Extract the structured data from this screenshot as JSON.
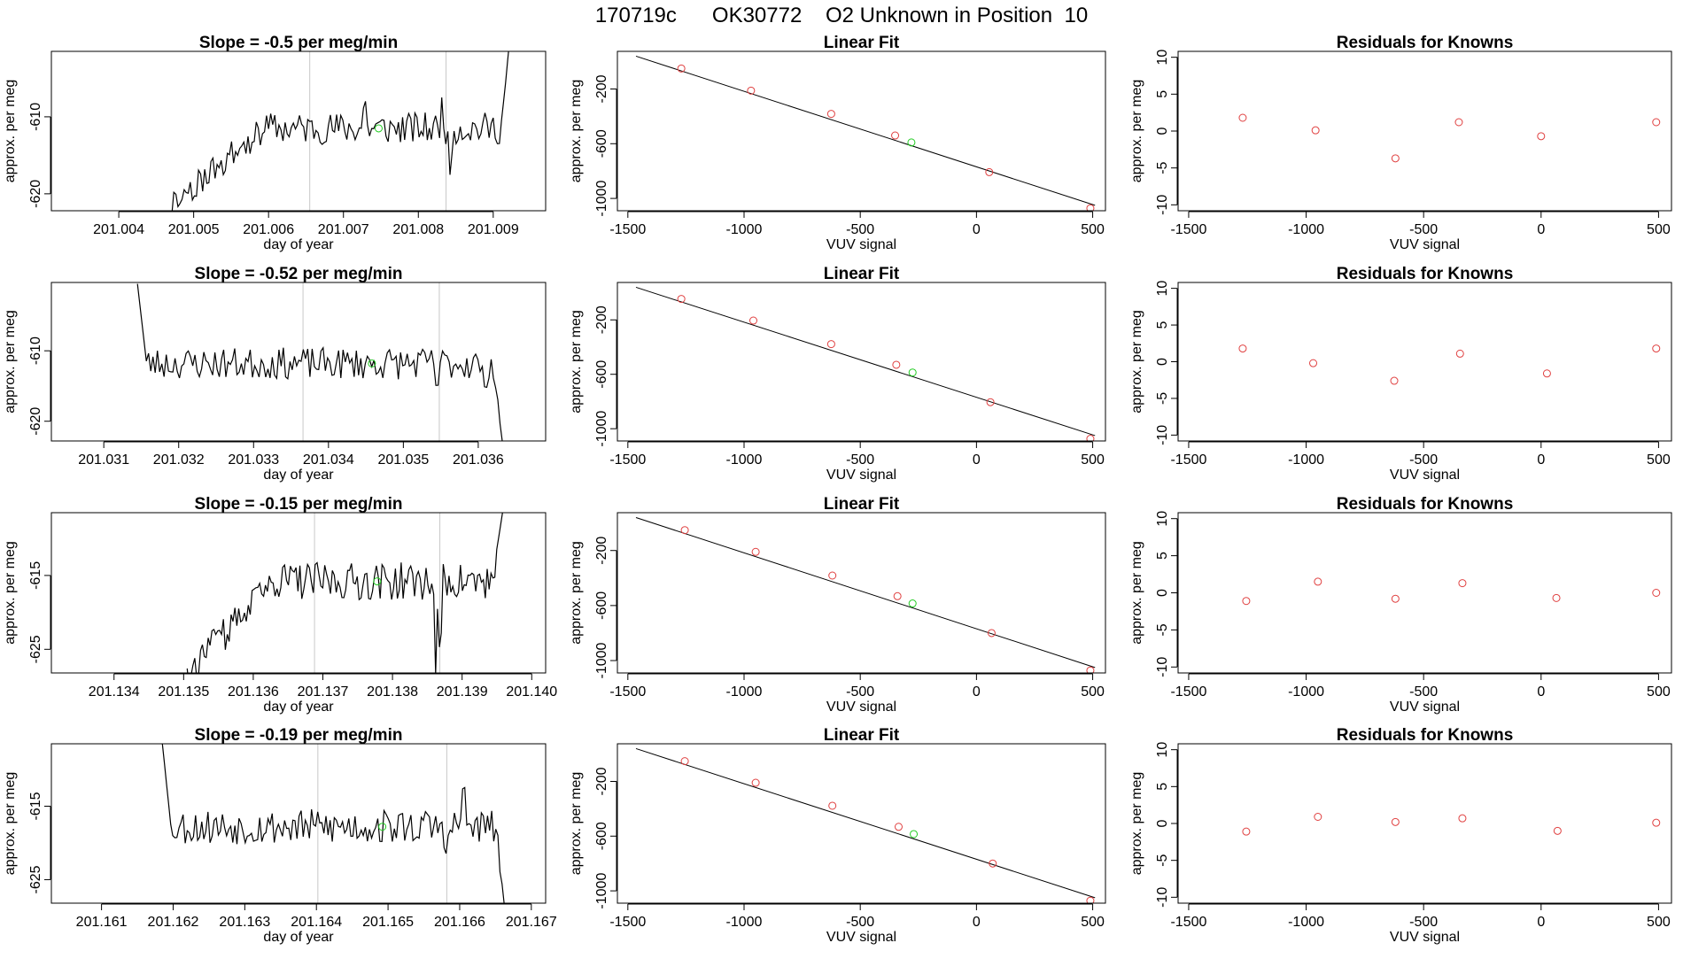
{
  "figure_title": "170719c      OK30772    O2 Unknown in Position  10",
  "colors": {
    "known": "#e04040",
    "unknown": "#22cc22",
    "line": "#000000",
    "marker": "#c8c8c8"
  },
  "chart_data": [
    {
      "type": "line",
      "title": "Slope =  -0.5  per meg/min",
      "xlabel": "day of year",
      "ylabel": "approx. per meg",
      "xlim": [
        201.0031,
        201.0097
      ],
      "ylim": [
        -622.2,
        -601.5
      ],
      "xticks": [
        201.004,
        201.005,
        201.006,
        201.007,
        201.008,
        201.009
      ],
      "xtick_labels": [
        "201.004",
        "201.005",
        "201.006",
        "201.007",
        "201.008",
        "201.009"
      ],
      "yticks": [
        -620,
        -610
      ],
      "ytick_labels": [
        "-620",
        "-610"
      ],
      "vlines": [
        201.00655,
        201.00837
      ],
      "unknown_point": [
        201.00747,
        -611.5
      ],
      "x_start": 201.00468,
      "x_end": 201.00922,
      "base_level": -611.5,
      "ramp_start_level": -621.5,
      "jitter": 1.3,
      "spikes": [
        [
          201.00728,
          4.5
        ],
        [
          201.00832,
          3.5
        ],
        [
          201.00842,
          -6.5
        ]
      ],
      "tail_end": [
        201.00922,
        -600
      ],
      "seed": 11
    },
    {
      "type": "scatter",
      "title": "Linear Fit",
      "xlabel": "VUV signal",
      "ylabel": "approx. per meg",
      "xlim": [
        -1545,
        555
      ],
      "ylim": [
        -1090,
        75
      ],
      "xticks": [
        -1500,
        -1000,
        -500,
        0,
        500
      ],
      "xtick_labels": [
        "-1500",
        "-1000",
        "-500",
        "0",
        "500"
      ],
      "yticks": [
        -1000,
        -600,
        -200
      ],
      "ytick_labels": [
        "-1000",
        "-600",
        "-200"
      ],
      "known_x": [
        -1270,
        -970,
        -625,
        -350,
        55,
        490
      ],
      "known_y": [
        -50,
        -212,
        -382,
        -540,
        -808,
        -1072
      ],
      "unknown_x": -280,
      "unknown_y": -591,
      "fit_slope": -0.552,
      "fit_intercept": -769
    },
    {
      "type": "scatter",
      "title": "Residuals for Knowns",
      "xlabel": "VUV signal",
      "ylabel": "approx. per meg",
      "xlim": [
        -1545,
        555
      ],
      "ylim": [
        -10.8,
        10.8
      ],
      "xticks": [
        -1500,
        -1000,
        -500,
        0,
        500
      ],
      "xtick_labels": [
        "-1500",
        "-1000",
        "-500",
        "0",
        "500"
      ],
      "yticks": [
        -10,
        -5,
        0,
        5,
        10
      ],
      "ytick_labels": [
        "-10",
        "-5",
        "0",
        "5",
        "10"
      ],
      "x": [
        -1270,
        -960,
        -620,
        -350,
        0,
        490
      ],
      "y": [
        1.8,
        0.1,
        -3.7,
        1.2,
        -0.7,
        1.2
      ]
    },
    {
      "type": "line",
      "title": "Slope =  -0.52  per meg/min",
      "xlabel": "day of year",
      "ylabel": "approx. per meg",
      "xlim": [
        201.0303,
        201.0369
      ],
      "ylim": [
        -622.8,
        -600.3
      ],
      "xticks": [
        201.031,
        201.032,
        201.033,
        201.034,
        201.035,
        201.036
      ],
      "xtick_labels": [
        "201.031",
        "201.032",
        "201.033",
        "201.034",
        "201.035",
        "201.036"
      ],
      "yticks": [
        -620,
        -610
      ],
      "ytick_labels": [
        "-620",
        "-610"
      ],
      "vlines": [
        201.03366,
        201.03548
      ],
      "unknown_point": [
        201.03458,
        -611.8
      ],
      "x_start": 201.03145,
      "x_end": 201.03632,
      "base_level": -611.8,
      "ramp_start_level": null,
      "head_start": [
        201.03145,
        -600.5
      ],
      "jitter": 1.4,
      "spikes": [
        [
          201.03545,
          -4.0
        ],
        [
          201.03608,
          -5.5
        ]
      ],
      "tail_end": [
        201.03632,
        -622.8
      ],
      "seed": 23
    },
    {
      "type": "scatter",
      "title": "Linear Fit",
      "xlabel": "VUV signal",
      "ylabel": "approx. per meg",
      "xlim": [
        -1545,
        555
      ],
      "ylim": [
        -1090,
        75
      ],
      "xticks": [
        -1500,
        -1000,
        -500,
        0,
        500
      ],
      "xtick_labels": [
        "-1500",
        "-1000",
        "-500",
        "0",
        "500"
      ],
      "yticks": [
        -1000,
        -600,
        -200
      ],
      "ytick_labels": [
        "-1000",
        "-600",
        "-200"
      ],
      "known_x": [
        -1270,
        -960,
        -625,
        -345,
        60,
        490
      ],
      "known_y": [
        -46,
        -205,
        -378,
        -530,
        -805,
        -1074
      ],
      "unknown_x": -275,
      "unknown_y": -587,
      "fit_slope": -0.552,
      "fit_intercept": -769
    },
    {
      "type": "scatter",
      "title": "Residuals for Knowns",
      "xlabel": "VUV signal",
      "ylabel": "approx. per meg",
      "xlim": [
        -1545,
        555
      ],
      "ylim": [
        -10.8,
        10.8
      ],
      "xticks": [
        -1500,
        -1000,
        -500,
        0,
        500
      ],
      "xtick_labels": [
        "-1500",
        "-1000",
        "-500",
        "0",
        "500"
      ],
      "yticks": [
        -10,
        -5,
        0,
        5,
        10
      ],
      "ytick_labels": [
        "-10",
        "-5",
        "0",
        "5",
        "10"
      ],
      "x": [
        -1270,
        -970,
        -625,
        -345,
        25,
        490
      ],
      "y": [
        1.8,
        -0.2,
        -2.6,
        1.1,
        -1.6,
        1.8
      ]
    },
    {
      "type": "line",
      "title": "Slope =  -0.15  per meg/min",
      "xlabel": "day of year",
      "ylabel": "approx. per meg",
      "xlim": [
        201.1331,
        201.1402
      ],
      "ylim": [
        -628.2,
        -606.5
      ],
      "xticks": [
        201.134,
        201.135,
        201.136,
        201.137,
        201.138,
        201.139,
        201.14
      ],
      "xtick_labels": [
        "201.134",
        "201.135",
        "201.136",
        "201.137",
        "201.138",
        "201.139",
        "201.140"
      ],
      "yticks": [
        -625,
        -615
      ],
      "ytick_labels": [
        "-625",
        "-615"
      ],
      "vlines": [
        201.13688,
        201.13868
      ],
      "unknown_point": [
        201.13778,
        -615.8
      ],
      "x_start": 201.13505,
      "x_end": 201.13958,
      "base_level": -615.8,
      "ramp_start_level": -628.2,
      "jitter": 1.6,
      "spikes": [
        [
          201.13862,
          -11.0
        ],
        [
          201.13868,
          -12.0
        ]
      ],
      "tail_end": [
        201.13958,
        -606.5
      ],
      "seed": 37
    },
    {
      "type": "scatter",
      "title": "Linear Fit",
      "xlabel": "VUV signal",
      "ylabel": "approx. per meg",
      "xlim": [
        -1545,
        555
      ],
      "ylim": [
        -1090,
        75
      ],
      "xticks": [
        -1500,
        -1000,
        -500,
        0,
        500
      ],
      "xtick_labels": [
        "-1500",
        "-1000",
        "-500",
        "0",
        "500"
      ],
      "yticks": [
        -1000,
        -600,
        -200
      ],
      "ytick_labels": [
        "-1000",
        "-600",
        "-200"
      ],
      "known_x": [
        -1255,
        -950,
        -620,
        -340,
        65,
        490
      ],
      "known_y": [
        -52,
        -210,
        -382,
        -532,
        -800,
        -1072
      ],
      "unknown_x": -275,
      "unknown_y": -585,
      "fit_slope": -0.552,
      "fit_intercept": -769
    },
    {
      "type": "scatter",
      "title": "Residuals for Knowns",
      "xlabel": "VUV signal",
      "ylabel": "approx. per meg",
      "xlim": [
        -1545,
        555
      ],
      "ylim": [
        -10.8,
        10.8
      ],
      "xticks": [
        -1500,
        -1000,
        -500,
        0,
        500
      ],
      "xtick_labels": [
        "-1500",
        "-1000",
        "-500",
        "0",
        "500"
      ],
      "yticks": [
        -10,
        -5,
        0,
        5,
        10
      ],
      "ytick_labels": [
        "-10",
        "-5",
        "0",
        "5",
        "10"
      ],
      "x": [
        -1255,
        -950,
        -620,
        -335,
        65,
        490
      ],
      "y": [
        -1.1,
        1.5,
        -0.8,
        1.3,
        -0.7,
        0.0
      ]
    },
    {
      "type": "line",
      "title": "Slope =  -0.19  per meg/min",
      "xlabel": "day of year",
      "ylabel": "approx. per meg",
      "xlim": [
        201.1603,
        201.1672
      ],
      "ylim": [
        -628.2,
        -606.5
      ],
      "xticks": [
        201.161,
        201.162,
        201.163,
        201.164,
        201.165,
        201.166,
        201.167
      ],
      "xtick_labels": [
        "201.161",
        "201.162",
        "201.163",
        "201.164",
        "201.165",
        "201.166",
        "201.167"
      ],
      "yticks": [
        -625,
        -615
      ],
      "ytick_labels": [
        "-625",
        "-615"
      ],
      "vlines": [
        201.16402,
        201.16582
      ],
      "unknown_point": [
        201.16492,
        -617.8
      ],
      "x_start": 201.16185,
      "x_end": 201.16662,
      "base_level": -617.8,
      "ramp_start_level": null,
      "head_start": [
        201.16185,
        -606.5
      ],
      "jitter": 1.5,
      "spikes": [
        [
          201.16605,
          7.0
        ],
        [
          201.16582,
          -5.0
        ]
      ],
      "tail_end": [
        201.16662,
        -628.2
      ],
      "seed": 53
    },
    {
      "type": "scatter",
      "title": "Linear Fit",
      "xlabel": "VUV signal",
      "ylabel": "approx. per meg",
      "xlim": [
        -1545,
        555
      ],
      "ylim": [
        -1090,
        75
      ],
      "xticks": [
        -1500,
        -1000,
        -500,
        0,
        500
      ],
      "xtick_labels": [
        "-1500",
        "-1000",
        "-500",
        "0",
        "500"
      ],
      "yticks": [
        -1000,
        -600,
        -200
      ],
      "ytick_labels": [
        "-1000",
        "-600",
        "-200"
      ],
      "known_x": [
        -1255,
        -950,
        -620,
        -335,
        70,
        490
      ],
      "known_y": [
        -52,
        -210,
        -378,
        -532,
        -800,
        -1072
      ],
      "unknown_x": -270,
      "unknown_y": -585,
      "fit_slope": -0.552,
      "fit_intercept": -769
    },
    {
      "type": "scatter",
      "title": "Residuals for Knowns",
      "xlabel": "VUV signal",
      "ylabel": "approx. per meg",
      "xlim": [
        -1545,
        555
      ],
      "ylim": [
        -10.8,
        10.8
      ],
      "xticks": [
        -1500,
        -1000,
        -500,
        0,
        500
      ],
      "xtick_labels": [
        "-1500",
        "-1000",
        "-500",
        "0",
        "500"
      ],
      "yticks": [
        -10,
        -5,
        0,
        5,
        10
      ],
      "ytick_labels": [
        "-10",
        "-5",
        "0",
        "5",
        "10"
      ],
      "x": [
        -1255,
        -950,
        -620,
        -335,
        70,
        490
      ],
      "y": [
        -1.1,
        0.9,
        0.2,
        0.7,
        -1.0,
        0.1
      ]
    }
  ]
}
